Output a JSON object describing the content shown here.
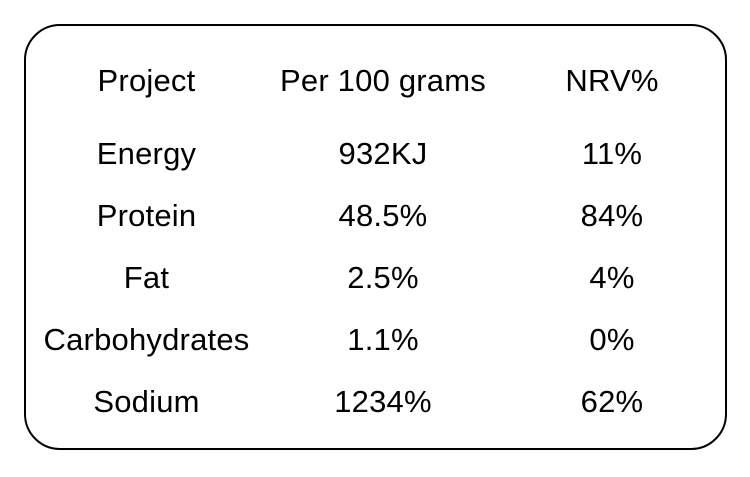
{
  "page": {
    "background_color": "#ffffff",
    "text_color": "#000000",
    "border_color": "#000000"
  },
  "nutrition_table": {
    "headers": [
      "Project",
      "Per 100 grams",
      "NRV%"
    ],
    "rows": [
      [
        "Energy",
        "932KJ",
        "11%"
      ],
      [
        "Protein",
        "48.5%",
        "84%"
      ],
      [
        "Fat",
        "2.5%",
        "4%"
      ],
      [
        "Carbohydrates",
        "1.1%",
        "0%"
      ],
      [
        "Sodium",
        "1234%",
        "62%"
      ]
    ]
  }
}
